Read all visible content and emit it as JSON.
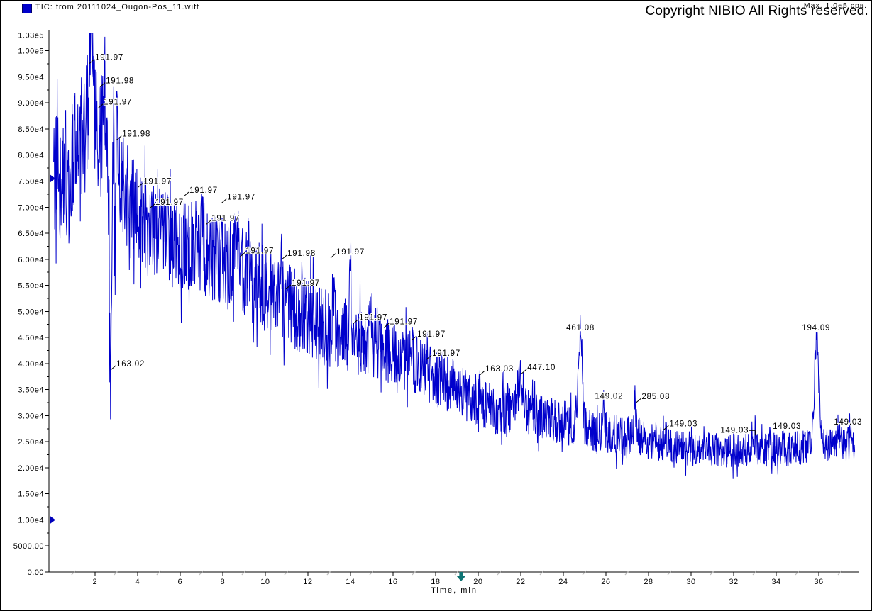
{
  "header": {
    "title": "TIC: from 20111024_Ougon-Pos_11.wiff",
    "max_label": "Max. 1.0e5 cps.",
    "copyright": "Copyright NIBIO All Rights reserved.",
    "legend_swatch_color": "#0000cc"
  },
  "chart_data": {
    "type": "line",
    "title": "TIC: from 20111024_Ougon-Pos_11.wiff",
    "xlabel": "Time, min",
    "ylabel": "",
    "xlim": [
      -0.16,
      37.9
    ],
    "ylim": [
      0,
      103900
    ],
    "grid": false,
    "legend_position": "none",
    "series": [
      {
        "name": "TIC"
      }
    ],
    "colors": {
      "trace": "#0000cc",
      "axis": "#000000",
      "minor_mark": "#bcbcbc",
      "cursor": "#0d7373",
      "marker": "#0000bb"
    },
    "y_ticks": [
      {
        "v": 103000,
        "label": "1.03e5"
      },
      {
        "v": 100000,
        "label": "1.00e5"
      },
      {
        "v": 95000,
        "label": "9.50e4"
      },
      {
        "v": 90000,
        "label": "9.00e4"
      },
      {
        "v": 85000,
        "label": "8.50e4"
      },
      {
        "v": 80000,
        "label": "8.00e4"
      },
      {
        "v": 75000,
        "label": "7.50e4"
      },
      {
        "v": 70000,
        "label": "7.00e4"
      },
      {
        "v": 65000,
        "label": "6.50e4"
      },
      {
        "v": 60000,
        "label": "6.00e4"
      },
      {
        "v": 55000,
        "label": "5.50e4"
      },
      {
        "v": 50000,
        "label": "5.00e4"
      },
      {
        "v": 45000,
        "label": "4.50e4"
      },
      {
        "v": 40000,
        "label": "4.00e4"
      },
      {
        "v": 35000,
        "label": "3.50e4"
      },
      {
        "v": 30000,
        "label": "3.00e4"
      },
      {
        "v": 25000,
        "label": "2.50e4"
      },
      {
        "v": 20000,
        "label": "2.00e4"
      },
      {
        "v": 15000,
        "label": "1.50e4"
      },
      {
        "v": 10000,
        "label": "1.00e4"
      },
      {
        "v": 5000,
        "label": "5000.00"
      },
      {
        "v": 0,
        "label": "0.00"
      }
    ],
    "y_minor_step": 2500,
    "x_ticks": {
      "major": [
        2,
        4,
        6,
        8,
        10,
        12,
        14,
        16,
        18,
        20,
        22,
        24,
        26,
        28,
        30,
        32,
        34,
        36
      ],
      "minor_marks": [
        1,
        3,
        5,
        7,
        9,
        11,
        13,
        15,
        17,
        19,
        21,
        23,
        25,
        27,
        29,
        31,
        33,
        35,
        37
      ]
    },
    "annotations": [
      {
        "label": "191.97",
        "t": 2.01,
        "i": 98800
      },
      {
        "label": "191.98",
        "t": 2.51,
        "i": 94300
      },
      {
        "label": "191.97",
        "t": 2.41,
        "i": 90200
      },
      {
        "label": "191.98",
        "t": 3.28,
        "i": 84100
      },
      {
        "label": "191.97",
        "t": 4.28,
        "i": 75000
      },
      {
        "label": "191.97",
        "t": 4.84,
        "i": 71000
      },
      {
        "label": "191.97",
        "t": 6.44,
        "i": 73300
      },
      {
        "label": "191.97",
        "t": 7.48,
        "i": 67900
      },
      {
        "label": "191.97",
        "t": 8.21,
        "i": 72000
      },
      {
        "label": "191.97",
        "t": 9.08,
        "i": 61700
      },
      {
        "label": "191.98",
        "t": 11.04,
        "i": 61200
      },
      {
        "label": "191.97",
        "t": 11.24,
        "i": 55500
      },
      {
        "label": "191.97",
        "t": 13.34,
        "i": 61500
      },
      {
        "label": "191.97",
        "t": 14.41,
        "i": 48900
      },
      {
        "label": "191.97",
        "t": 15.84,
        "i": 48100
      },
      {
        "label": "191.97",
        "t": 17.14,
        "i": 45700
      },
      {
        "label": "191.97",
        "t": 17.84,
        "i": 42000
      },
      {
        "label": "163.02",
        "t": 3.01,
        "i": 40000
      },
      {
        "label": "163.03",
        "t": 20.34,
        "i": 39000
      },
      {
        "label": "447.10",
        "t": 22.31,
        "i": 39300
      },
      {
        "label": "461.08",
        "t": 24.14,
        "i": 46900,
        "leader": "none"
      },
      {
        "label": "149.02",
        "t": 25.48,
        "i": 33800,
        "leader": "none"
      },
      {
        "label": "285.08",
        "t": 27.68,
        "i": 33700
      },
      {
        "label": "149.03",
        "t": 28.98,
        "i": 28500
      },
      {
        "label": "149.03",
        "t": 31.38,
        "i": 27300,
        "leader": "right"
      },
      {
        "label": "149.03",
        "t": 33.84,
        "i": 28000,
        "leader": "none"
      },
      {
        "label": "194.09",
        "t": 35.21,
        "i": 46900,
        "leader": "none"
      },
      {
        "label": "149.03",
        "t": 36.71,
        "i": 28800,
        "leader": "none"
      }
    ],
    "axis_markers": [
      {
        "type": "right-triangle",
        "i": 75500
      },
      {
        "type": "right-triangle",
        "i": 10000
      }
    ],
    "time_cursor": {
      "t": 19.2
    },
    "trace": {
      "start": 0.06,
      "end": 37.7,
      "dt": 0.0167,
      "seed": 987123,
      "clamp": [
        2000,
        103400
      ],
      "envelope": [
        [
          0.0,
          77000
        ],
        [
          0.4,
          75000
        ],
        [
          0.8,
          78000
        ],
        [
          1.3,
          80000
        ],
        [
          1.7,
          88000
        ],
        [
          1.9,
          90000
        ],
        [
          2.2,
          85000
        ],
        [
          2.6,
          82000
        ],
        [
          3.0,
          76000
        ],
        [
          3.4,
          73000
        ],
        [
          4.0,
          68000
        ],
        [
          4.6,
          65500
        ],
        [
          5.2,
          64000
        ],
        [
          6.0,
          62500
        ],
        [
          6.6,
          63000
        ],
        [
          7.2,
          61000
        ],
        [
          8.0,
          60000
        ],
        [
          8.6,
          59000
        ],
        [
          9.4,
          56000
        ],
        [
          10.0,
          54000
        ],
        [
          10.6,
          52500
        ],
        [
          11.4,
          50500
        ],
        [
          12.0,
          49000
        ],
        [
          12.6,
          47500
        ],
        [
          13.4,
          46000
        ],
        [
          14.2,
          45000
        ],
        [
          15.0,
          43500
        ],
        [
          16.0,
          41800
        ],
        [
          17.0,
          39800
        ],
        [
          18.0,
          37500
        ],
        [
          18.6,
          36200
        ],
        [
          19.2,
          34500
        ],
        [
          19.8,
          33000
        ],
        [
          20.4,
          32000
        ],
        [
          21.0,
          31000
        ],
        [
          21.6,
          31500
        ],
        [
          22.2,
          30500
        ],
        [
          23.0,
          30000
        ],
        [
          23.6,
          29200
        ],
        [
          24.4,
          28200
        ],
        [
          25.2,
          27400
        ],
        [
          26.0,
          26800
        ],
        [
          26.8,
          26200
        ],
        [
          27.6,
          25800
        ],
        [
          28.4,
          25000
        ],
        [
          29.0,
          24200
        ],
        [
          29.6,
          23800
        ],
        [
          30.5,
          23500
        ],
        [
          31.5,
          23400
        ],
        [
          32.5,
          23300
        ],
        [
          33.5,
          23400
        ],
        [
          34.5,
          23600
        ],
        [
          35.3,
          23800
        ],
        [
          36.3,
          24500
        ],
        [
          37.0,
          24800
        ],
        [
          37.7,
          24800
        ]
      ],
      "noise_amp": [
        [
          0,
          12000
        ],
        [
          1,
          13000
        ],
        [
          2,
          13000
        ],
        [
          3,
          11000
        ],
        [
          4,
          9500
        ],
        [
          6,
          9000
        ],
        [
          8,
          8500
        ],
        [
          10,
          8200
        ],
        [
          12,
          7800
        ],
        [
          14,
          7000
        ],
        [
          16,
          6200
        ],
        [
          18,
          5800
        ],
        [
          20,
          5200
        ],
        [
          22,
          4800
        ],
        [
          24,
          4300
        ],
        [
          26,
          4000
        ],
        [
          28,
          3800
        ],
        [
          30,
          3400
        ],
        [
          32,
          3300
        ],
        [
          34,
          3300
        ],
        [
          36,
          3400
        ],
        [
          37.7,
          3400
        ]
      ],
      "peaks": [
        [
          1.8,
          15000,
          0.05
        ],
        [
          2.45,
          10000,
          0.04
        ],
        [
          3.05,
          11000,
          0.05
        ],
        [
          7.05,
          5500,
          0.05
        ],
        [
          8.7,
          6500,
          0.05
        ],
        [
          9.2,
          5000,
          0.04
        ],
        [
          10.75,
          7500,
          0.04
        ],
        [
          13.2,
          11000,
          0.04
        ],
        [
          14.0,
          14500,
          0.04
        ],
        [
          14.9,
          5000,
          0.04
        ],
        [
          15.2,
          4000,
          0.04
        ],
        [
          16.9,
          4000,
          0.04
        ],
        [
          17.6,
          3500,
          0.04
        ],
        [
          20.1,
          5000,
          0.05
        ],
        [
          22.0,
          6500,
          0.15
        ],
        [
          24.8,
          17500,
          0.1
        ],
        [
          25.9,
          5000,
          0.04
        ],
        [
          27.35,
          6500,
          0.05
        ],
        [
          28.8,
          3500,
          0.04
        ],
        [
          33.0,
          2500,
          0.04
        ],
        [
          34.3,
          2500,
          0.04
        ],
        [
          35.9,
          21500,
          0.1
        ],
        [
          36.9,
          2500,
          0.05
        ]
      ],
      "valleys": [
        [
          2.72,
          47000,
          0.045
        ],
        [
          2.95,
          15000,
          0.035
        ]
      ]
    }
  }
}
